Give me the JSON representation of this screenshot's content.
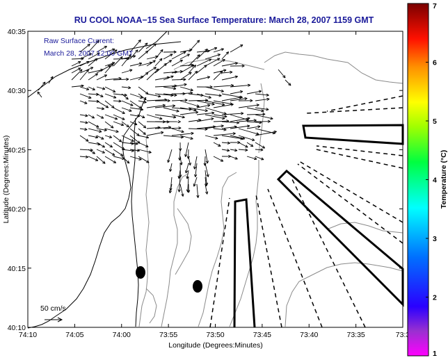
{
  "title": "RU COOL  NOAA−15  Sea Surface Temperature:  March 28, 2007 1159 GMT",
  "annotation": {
    "line1": "Raw Surface Current:",
    "line2": "March 28, 2007 12:00 GMT"
  },
  "xlabel": "Longitude (Degrees:Minutes)",
  "ylabel": "Latitude (Degrees:Minutes)",
  "x_ticks": [
    "74:10",
    "74:05",
    "74:00",
    "73:55",
    "73:50",
    "73:45",
    "73:40",
    "73:35",
    "73:3"
  ],
  "y_ticks": [
    "40:35",
    "40:30",
    "40:25",
    "40:20",
    "40:15",
    "40:10"
  ],
  "scale_label": "50 cm/s",
  "colorbar": {
    "label": "Temperature (°C)",
    "ticks": [
      "7",
      "6",
      "5",
      "4",
      "3",
      "2",
      "1"
    ],
    "range": [
      1,
      7
    ]
  },
  "colors": {
    "title": "#1a1a9a",
    "vector": "#000000",
    "bathymetry": "#888888"
  }
}
